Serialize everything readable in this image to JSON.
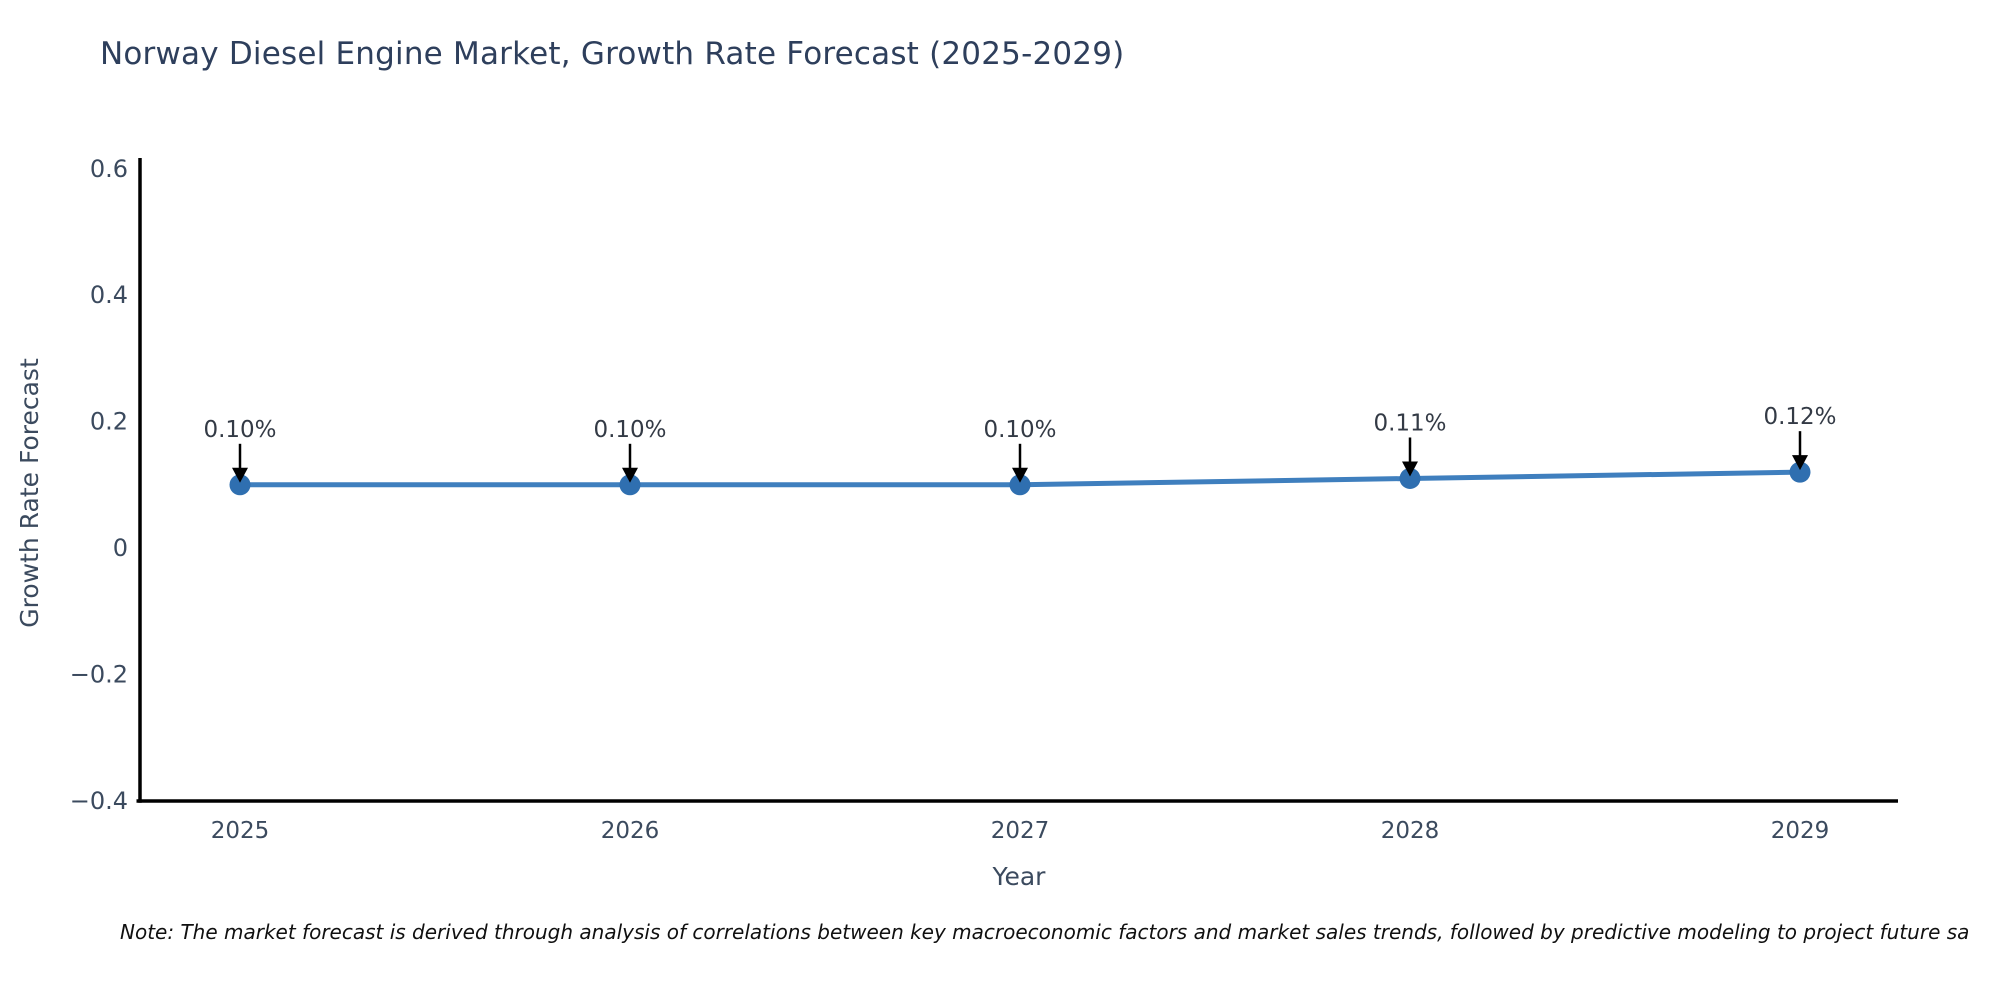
{
  "chart_data": {
    "type": "line",
    "title": "Norway Diesel Engine Market, Growth Rate Forecast (2025-2029)",
    "xlabel": "Year",
    "ylabel": "Growth Rate Forecast",
    "x": [
      "2025",
      "2026",
      "2027",
      "2028",
      "2029"
    ],
    "values": [
      0.1,
      0.1,
      0.1,
      0.11,
      0.12
    ],
    "point_labels": [
      "0.10%",
      "0.10%",
      "0.10%",
      "0.11%",
      "0.12%"
    ],
    "ylim": [
      -0.4,
      0.6
    ],
    "yticks": [
      0.6,
      0.4,
      0.2,
      0,
      -0.2,
      -0.4
    ],
    "ytick_labels": [
      "0.6",
      "0.4",
      "0.2",
      "0",
      "−0.2",
      "−0.4"
    ],
    "grid": false,
    "legend": null,
    "marker_style": "circle",
    "annotation_style": "label-with-down-arrow",
    "colors": {
      "line": "#3f7fbe",
      "marker": "#2f6fb0",
      "axis": "#000000",
      "title_text": "#2e3f5c",
      "tick_text": "#3b4a5e",
      "annotation_text": "#333a45",
      "arrow": "#000000",
      "note_text": "#101010",
      "background": "#ffffff"
    }
  },
  "note": {
    "text": "Note: The market forecast is derived through analysis of correlations between key macroeconomic factors and market sales trends, followed by predictive modeling to project future sa"
  }
}
